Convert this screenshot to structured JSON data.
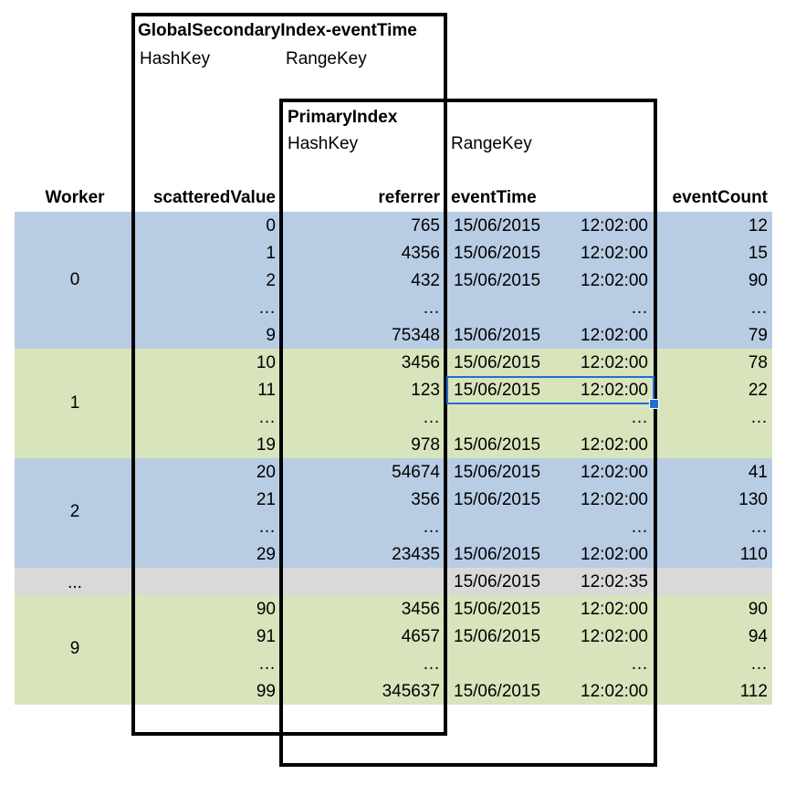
{
  "header": {
    "gsi_title": "GlobalSecondaryIndex-eventTime",
    "gsi_hash": "HashKey",
    "gsi_range": "RangeKey",
    "pi_title": "PrimaryIndex",
    "pi_hash": "HashKey",
    "pi_range": "RangeKey"
  },
  "columns": [
    "Worker",
    "scatteredValue",
    "referrer",
    "eventTime",
    "eventCount"
  ],
  "workers": [
    "0",
    "1",
    "2",
    "...",
    "9"
  ],
  "colors": {
    "blue": "#b8cce4",
    "green": "#d8e4bc",
    "gray": "#d9d9d9",
    "selection": "#1f6fd1"
  },
  "rows": [
    {
      "sv": "0",
      "ref": "765",
      "date": "15/06/2015",
      "time": "12:02:00",
      "cnt": "12"
    },
    {
      "sv": "1",
      "ref": "4356",
      "date": "15/06/2015",
      "time": "12:02:00",
      "cnt": "15"
    },
    {
      "sv": "2",
      "ref": "432",
      "date": "15/06/2015",
      "time": "12:02:00",
      "cnt": "90"
    },
    {
      "sv": "…",
      "ref": "…",
      "date": "",
      "time": "…",
      "cnt": "…"
    },
    {
      "sv": "9",
      "ref": "75348",
      "date": "15/06/2015",
      "time": "12:02:00",
      "cnt": "79"
    },
    {
      "sv": "10",
      "ref": "3456",
      "date": "15/06/2015",
      "time": "12:02:00",
      "cnt": "78"
    },
    {
      "sv": "11",
      "ref": "123",
      "date": "15/06/2015",
      "time": "12:02:00",
      "cnt": "22"
    },
    {
      "sv": "…",
      "ref": "…",
      "date": "",
      "time": "…",
      "cnt": "…"
    },
    {
      "sv": "19",
      "ref": "978",
      "date": "15/06/2015",
      "time": "12:02:00",
      "cnt": ""
    },
    {
      "sv": "20",
      "ref": "54674",
      "date": "15/06/2015",
      "time": "12:02:00",
      "cnt": "41"
    },
    {
      "sv": "21",
      "ref": "356",
      "date": "15/06/2015",
      "time": "12:02:00",
      "cnt": "130"
    },
    {
      "sv": "…",
      "ref": "…",
      "date": "",
      "time": "…",
      "cnt": "…"
    },
    {
      "sv": "29",
      "ref": "23435",
      "date": "15/06/2015",
      "time": "12:02:00",
      "cnt": "110"
    },
    {
      "sv": "",
      "ref": "",
      "date": "15/06/2015",
      "time": "12:02:35",
      "cnt": ""
    },
    {
      "sv": "90",
      "ref": "3456",
      "date": "15/06/2015",
      "time": "12:02:00",
      "cnt": "90"
    },
    {
      "sv": "91",
      "ref": "4657",
      "date": "15/06/2015",
      "time": "12:02:00",
      "cnt": "94"
    },
    {
      "sv": "…",
      "ref": "…",
      "date": "",
      "time": "…",
      "cnt": "…"
    },
    {
      "sv": "99",
      "ref": "345637",
      "date": "15/06/2015",
      "time": "12:02:00",
      "cnt": "112"
    }
  ]
}
